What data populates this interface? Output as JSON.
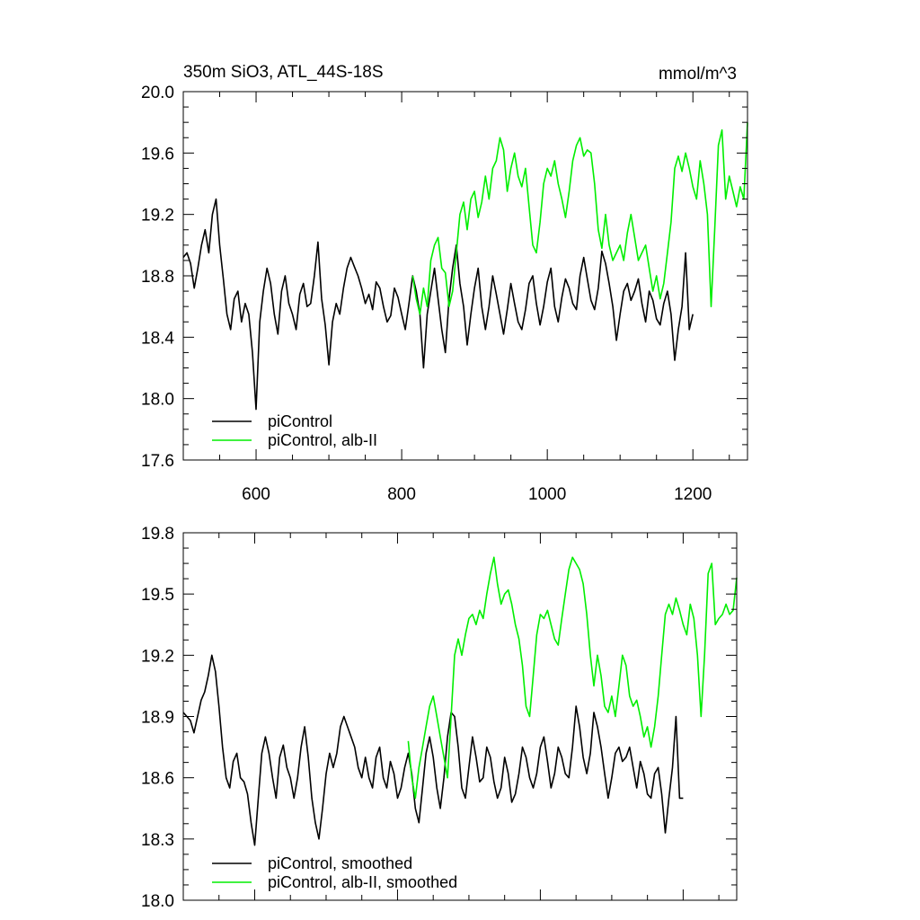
{
  "chart_data": [
    {
      "type": "line",
      "title": "350m SiO3, ATL_44S-18S",
      "unit": "mmol/m^3",
      "xlim": [
        500,
        1275
      ],
      "ylim": [
        17.6,
        20.0
      ],
      "xticks": [
        600,
        800,
        1000,
        1200
      ],
      "yticks": [
        17.6,
        18.0,
        18.4,
        18.8,
        19.2,
        19.6,
        20.0
      ],
      "ytick_labels": [
        "17.6",
        "18.0",
        "18.4",
        "18.8",
        "19.2",
        "19.6",
        "20.0"
      ],
      "xtick_labels": [
        "600",
        "800",
        "1000",
        "1200"
      ],
      "legend_position": "bottom-left",
      "series": [
        {
          "name": "piControl",
          "color": "#000000",
          "x": [
            500,
            505,
            510,
            515,
            520,
            525,
            530,
            535,
            540,
            545,
            550,
            555,
            560,
            565,
            570,
            575,
            580,
            585,
            590,
            595,
            600,
            605,
            610,
            615,
            620,
            625,
            630,
            635,
            640,
            645,
            650,
            655,
            660,
            665,
            670,
            675,
            680,
            685,
            690,
            695,
            700,
            705,
            710,
            715,
            720,
            725,
            730,
            735,
            740,
            745,
            750,
            755,
            760,
            765,
            770,
            775,
            780,
            785,
            790,
            795,
            800,
            805,
            810,
            815,
            820,
            825,
            830,
            835,
            840,
            845,
            850,
            855,
            860,
            865,
            870,
            875,
            880,
            885,
            890,
            895,
            900,
            905,
            910,
            915,
            920,
            925,
            930,
            935,
            940,
            945,
            950,
            955,
            960,
            965,
            970,
            975,
            980,
            985,
            990,
            995,
            1000,
            1005,
            1010,
            1015,
            1020,
            1025,
            1030,
            1035,
            1040,
            1045,
            1050,
            1055,
            1060,
            1065,
            1070,
            1075,
            1080,
            1085,
            1090,
            1095,
            1100,
            1105,
            1110,
            1115,
            1120,
            1125,
            1130,
            1135,
            1140,
            1145,
            1150,
            1155,
            1160,
            1165,
            1170,
            1175,
            1180,
            1185,
            1190,
            1195,
            1200
          ],
          "y": [
            18.92,
            18.95,
            18.88,
            18.72,
            18.85,
            19.0,
            19.1,
            18.95,
            19.2,
            19.3,
            19.0,
            18.78,
            18.55,
            18.45,
            18.65,
            18.7,
            18.5,
            18.62,
            18.55,
            18.3,
            17.93,
            18.5,
            18.7,
            18.85,
            18.75,
            18.55,
            18.42,
            18.7,
            18.8,
            18.62,
            18.55,
            18.45,
            18.68,
            18.75,
            18.6,
            18.62,
            18.8,
            19.02,
            18.65,
            18.48,
            18.22,
            18.5,
            18.62,
            18.55,
            18.72,
            18.85,
            18.92,
            18.86,
            18.8,
            18.72,
            18.62,
            18.68,
            18.58,
            18.76,
            18.72,
            18.6,
            18.5,
            18.54,
            18.72,
            18.66,
            18.55,
            18.45,
            18.62,
            18.8,
            18.7,
            18.55,
            18.2,
            18.55,
            18.7,
            18.85,
            18.65,
            18.45,
            18.3,
            18.65,
            18.85,
            19.0,
            18.75,
            18.6,
            18.35,
            18.55,
            18.72,
            18.85,
            18.6,
            18.45,
            18.6,
            18.8,
            18.68,
            18.55,
            18.42,
            18.58,
            18.75,
            18.62,
            18.5,
            18.45,
            18.58,
            18.75,
            18.8,
            18.62,
            18.48,
            18.6,
            18.76,
            18.85,
            18.6,
            18.5,
            18.66,
            18.78,
            18.72,
            18.62,
            18.58,
            18.8,
            18.92,
            18.78,
            18.64,
            18.58,
            18.72,
            18.96,
            18.88,
            18.75,
            18.6,
            18.38,
            18.55,
            18.7,
            18.75,
            18.64,
            18.7,
            18.78,
            18.62,
            18.5,
            18.7,
            18.64,
            18.52,
            18.48,
            18.62,
            18.7,
            18.55,
            18.25,
            18.45,
            18.6,
            18.95,
            18.45,
            18.55
          ]
        },
        {
          "name": "piControl, alb-II",
          "color": "#00ee00",
          "x": [
            815,
            820,
            825,
            830,
            835,
            840,
            845,
            850,
            855,
            860,
            865,
            870,
            875,
            880,
            885,
            890,
            895,
            900,
            905,
            910,
            915,
            920,
            925,
            930,
            935,
            940,
            945,
            950,
            955,
            960,
            965,
            970,
            975,
            980,
            985,
            990,
            995,
            1000,
            1005,
            1010,
            1015,
            1020,
            1025,
            1030,
            1035,
            1040,
            1045,
            1050,
            1055,
            1060,
            1065,
            1070,
            1075,
            1080,
            1085,
            1090,
            1095,
            1100,
            1105,
            1110,
            1115,
            1120,
            1125,
            1130,
            1135,
            1140,
            1145,
            1150,
            1155,
            1160,
            1165,
            1170,
            1175,
            1180,
            1185,
            1190,
            1195,
            1200,
            1205,
            1210,
            1215,
            1220,
            1225,
            1230,
            1235,
            1240,
            1245,
            1250,
            1255,
            1260,
            1265,
            1270,
            1275
          ],
          "y": [
            18.8,
            18.65,
            18.55,
            18.72,
            18.6,
            18.9,
            19.0,
            19.05,
            18.85,
            18.82,
            18.6,
            18.7,
            18.95,
            19.2,
            19.28,
            19.1,
            19.3,
            19.35,
            19.18,
            19.28,
            19.45,
            19.3,
            19.5,
            19.55,
            19.7,
            19.62,
            19.35,
            19.5,
            19.6,
            19.45,
            19.38,
            19.5,
            19.25,
            19.0,
            18.95,
            19.15,
            19.4,
            19.5,
            19.45,
            19.55,
            19.4,
            19.3,
            19.18,
            19.35,
            19.55,
            19.65,
            19.7,
            19.58,
            19.62,
            19.6,
            19.4,
            19.1,
            18.98,
            19.2,
            19.0,
            18.9,
            18.95,
            19.0,
            18.9,
            19.08,
            19.2,
            19.05,
            18.9,
            18.95,
            19.0,
            18.85,
            18.7,
            18.8,
            18.65,
            18.75,
            18.95,
            19.15,
            19.5,
            19.58,
            19.48,
            19.6,
            19.5,
            19.38,
            19.3,
            19.55,
            19.4,
            19.2,
            18.6,
            19.1,
            19.65,
            19.75,
            19.3,
            19.45,
            19.35,
            19.25,
            19.38,
            19.3,
            19.8
          ]
        }
      ]
    },
    {
      "type": "line",
      "xlim": [
        500,
        1275
      ],
      "ylim": [
        18.0,
        19.8
      ],
      "xticks": [
        600,
        800,
        1000,
        1200
      ],
      "yticks": [
        18.0,
        18.3,
        18.6,
        18.9,
        19.2,
        19.5,
        19.8
      ],
      "ytick_labels": [
        "18.0",
        "18.3",
        "18.6",
        "18.9",
        "19.2",
        "19.5",
        "19.8"
      ],
      "legend_position": "bottom-left",
      "series": [
        {
          "name": "piControl, smoothed",
          "color": "#000000",
          "x": [
            500,
            505,
            510,
            515,
            520,
            525,
            530,
            535,
            540,
            545,
            550,
            555,
            560,
            565,
            570,
            575,
            580,
            585,
            590,
            595,
            600,
            605,
            610,
            615,
            620,
            625,
            630,
            635,
            640,
            645,
            650,
            655,
            660,
            665,
            670,
            675,
            680,
            685,
            690,
            695,
            700,
            705,
            710,
            715,
            720,
            725,
            730,
            735,
            740,
            745,
            750,
            755,
            760,
            765,
            770,
            775,
            780,
            785,
            790,
            795,
            800,
            805,
            810,
            815,
            820,
            825,
            830,
            835,
            840,
            845,
            850,
            855,
            860,
            865,
            870,
            875,
            880,
            885,
            890,
            895,
            900,
            905,
            910,
            915,
            920,
            925,
            930,
            935,
            940,
            945,
            950,
            955,
            960,
            965,
            970,
            975,
            980,
            985,
            990,
            995,
            1000,
            1005,
            1010,
            1015,
            1020,
            1025,
            1030,
            1035,
            1040,
            1045,
            1050,
            1055,
            1060,
            1065,
            1070,
            1075,
            1080,
            1085,
            1090,
            1095,
            1100,
            1105,
            1110,
            1115,
            1120,
            1125,
            1130,
            1135,
            1140,
            1145,
            1150,
            1155,
            1160,
            1165,
            1170,
            1175,
            1180,
            1185,
            1190,
            1195,
            1200
          ],
          "y": [
            18.92,
            18.9,
            18.88,
            18.82,
            18.9,
            18.98,
            19.02,
            19.1,
            19.2,
            19.12,
            18.95,
            18.75,
            18.6,
            18.55,
            18.68,
            18.72,
            18.6,
            18.58,
            18.52,
            18.38,
            18.27,
            18.5,
            18.72,
            18.8,
            18.72,
            18.6,
            18.5,
            18.7,
            18.76,
            18.65,
            18.6,
            18.5,
            18.6,
            18.75,
            18.85,
            18.7,
            18.5,
            18.38,
            18.3,
            18.45,
            18.62,
            18.72,
            18.65,
            18.72,
            18.85,
            18.9,
            18.85,
            18.8,
            18.75,
            18.65,
            18.6,
            18.7,
            18.6,
            18.55,
            18.7,
            18.75,
            18.6,
            18.55,
            18.68,
            18.62,
            18.5,
            18.55,
            18.65,
            18.72,
            18.62,
            18.45,
            18.38,
            18.55,
            18.72,
            18.8,
            18.7,
            18.55,
            18.45,
            18.6,
            18.8,
            18.92,
            18.9,
            18.75,
            18.55,
            18.5,
            18.65,
            18.8,
            18.7,
            18.58,
            18.6,
            18.75,
            18.7,
            18.58,
            18.5,
            18.55,
            18.7,
            18.62,
            18.48,
            18.52,
            18.62,
            18.75,
            18.7,
            18.6,
            18.55,
            18.62,
            18.75,
            18.8,
            18.68,
            18.55,
            18.62,
            18.75,
            18.7,
            18.62,
            18.6,
            18.75,
            18.95,
            18.85,
            18.7,
            18.62,
            18.72,
            18.92,
            18.85,
            18.75,
            18.62,
            18.5,
            18.6,
            18.72,
            18.75,
            18.68,
            18.7,
            18.75,
            18.65,
            18.55,
            18.68,
            18.62,
            18.52,
            18.5,
            18.62,
            18.65,
            18.52,
            18.33,
            18.5,
            18.65,
            18.9,
            18.5,
            18.5
          ]
        },
        {
          "name": "piControl, alb-II, smoothed",
          "color": "#00ee00",
          "x": [
            815,
            820,
            825,
            830,
            835,
            840,
            845,
            850,
            855,
            860,
            865,
            870,
            875,
            880,
            885,
            890,
            895,
            900,
            905,
            910,
            915,
            920,
            925,
            930,
            935,
            940,
            945,
            950,
            955,
            960,
            965,
            970,
            975,
            980,
            985,
            990,
            995,
            1000,
            1005,
            1010,
            1015,
            1020,
            1025,
            1030,
            1035,
            1040,
            1045,
            1050,
            1055,
            1060,
            1065,
            1070,
            1075,
            1080,
            1085,
            1090,
            1095,
            1100,
            1105,
            1110,
            1115,
            1120,
            1125,
            1130,
            1135,
            1140,
            1145,
            1150,
            1155,
            1160,
            1165,
            1170,
            1175,
            1180,
            1185,
            1190,
            1195,
            1200,
            1205,
            1210,
            1215,
            1220,
            1225,
            1230,
            1235,
            1240,
            1245,
            1250,
            1255,
            1260,
            1265,
            1270,
            1275
          ],
          "y": [
            18.78,
            18.6,
            18.5,
            18.65,
            18.75,
            18.85,
            18.95,
            19.0,
            18.9,
            18.8,
            18.7,
            18.6,
            18.9,
            19.2,
            19.28,
            19.2,
            19.3,
            19.38,
            19.4,
            19.35,
            19.42,
            19.38,
            19.5,
            19.6,
            19.68,
            19.55,
            19.45,
            19.5,
            19.52,
            19.45,
            19.35,
            19.28,
            19.15,
            18.95,
            18.9,
            19.1,
            19.3,
            19.4,
            19.38,
            19.42,
            19.35,
            19.28,
            19.25,
            19.38,
            19.5,
            19.62,
            19.68,
            19.65,
            19.62,
            19.55,
            19.4,
            19.2,
            19.05,
            19.2,
            19.1,
            18.95,
            18.92,
            19.0,
            18.9,
            19.05,
            19.2,
            19.15,
            19.0,
            18.95,
            18.98,
            18.9,
            18.8,
            18.85,
            18.75,
            18.85,
            19.0,
            19.2,
            19.4,
            19.45,
            19.4,
            19.48,
            19.42,
            19.35,
            19.3,
            19.45,
            19.38,
            19.2,
            18.9,
            19.2,
            19.6,
            19.65,
            19.35,
            19.38,
            19.4,
            19.45,
            19.4,
            19.42,
            19.58
          ]
        }
      ]
    }
  ]
}
